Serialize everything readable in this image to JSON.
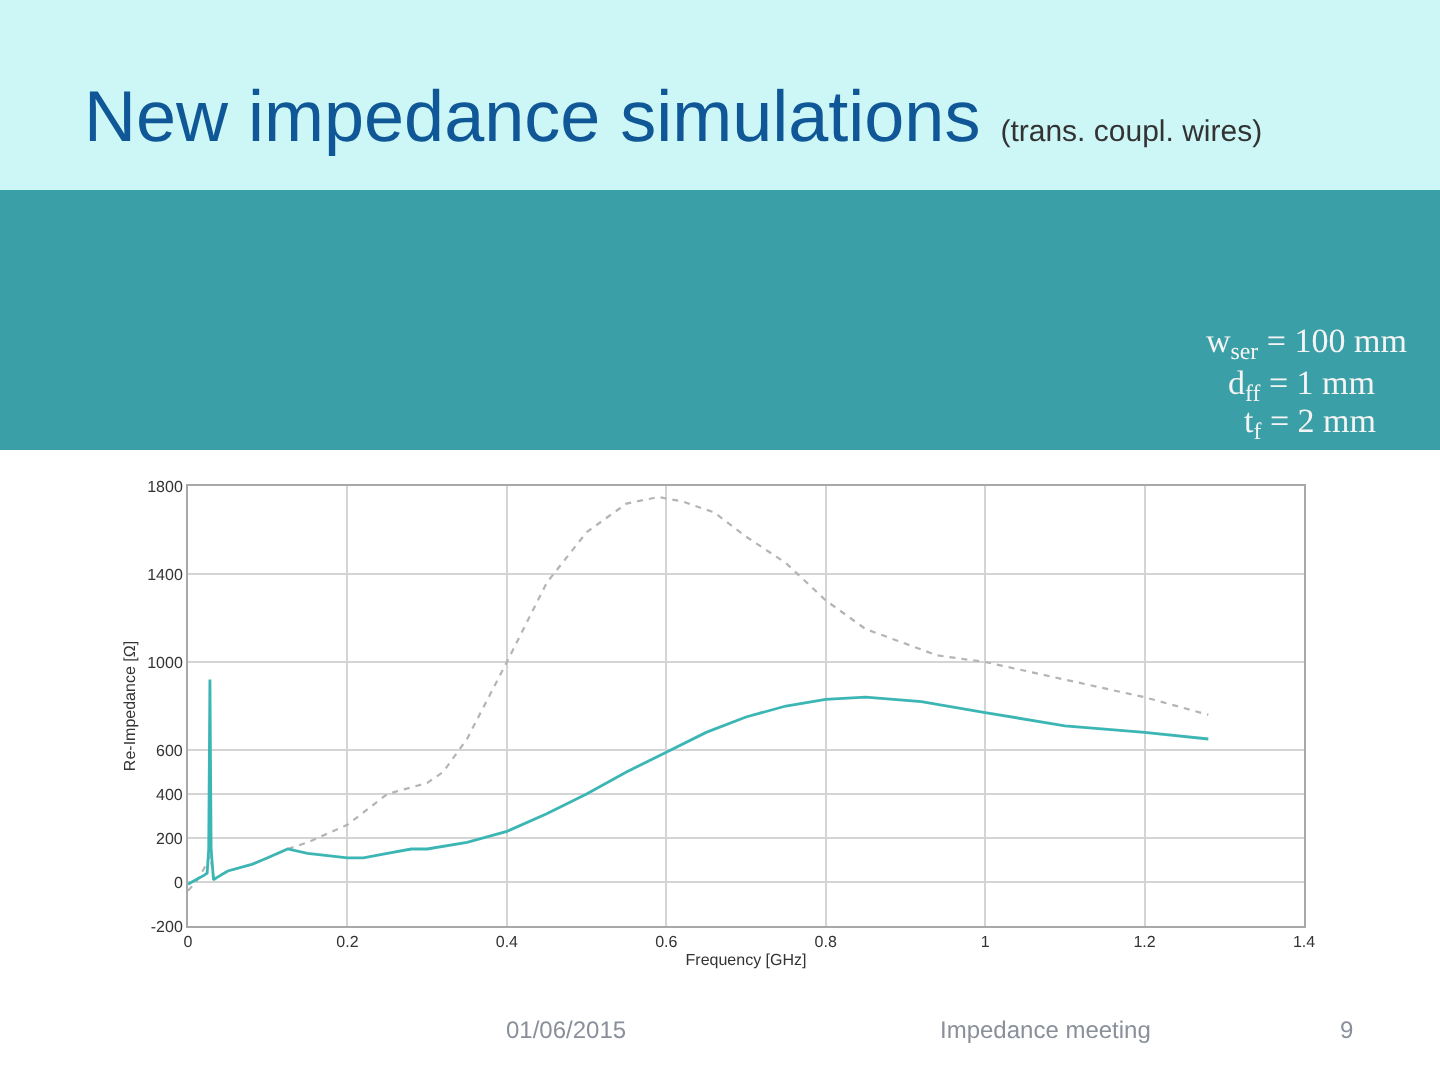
{
  "chart_data": {
    "type": "line",
    "title": "New impedance simulations",
    "subtitle": "(trans. coupl. wires)",
    "xlabel": "Frequency [GHz]",
    "ylabel": "Re-Impedance [Ω]",
    "xlim": [
      0,
      1.4
    ],
    "xticks": [
      0,
      0.2,
      0.4,
      0.6,
      0.8,
      1,
      1.2,
      1.4
    ],
    "ylim": [
      -200,
      1800
    ],
    "yticks": [
      -200,
      0,
      200,
      400,
      600,
      1000,
      1400,
      1800
    ],
    "grid": true,
    "marker": "none",
    "series": [
      {
        "color": "#b4b4b4",
        "line_style": "dotted",
        "x": [
          0,
          0.01,
          0.02,
          0.025,
          0.028,
          0.032,
          0.04,
          0.05,
          0.08,
          0.1,
          0.125,
          0.15,
          0.2,
          0.25,
          0.3,
          0.32,
          0.35,
          0.4,
          0.45,
          0.5,
          0.55,
          0.59,
          0.62,
          0.66,
          0.7,
          0.75,
          0.8,
          0.85,
          0.94,
          1.0,
          1.1,
          1.2,
          1.28
        ],
        "values": [
          -40,
          0,
          60,
          100,
          120,
          20,
          30,
          50,
          80,
          110,
          150,
          180,
          260,
          400,
          450,
          500,
          650,
          1000,
          1360,
          1590,
          1720,
          1750,
          1730,
          1680,
          1570,
          1450,
          1280,
          1150,
          1030,
          1000,
          920,
          840,
          760
        ]
      },
      {
        "color": "#3cb6b4",
        "line_style": "solid",
        "x": [
          0,
          0.01,
          0.02,
          0.024,
          0.026,
          0.0275,
          0.029,
          0.032,
          0.036,
          0.05,
          0.08,
          0.1,
          0.125,
          0.15,
          0.2,
          0.22,
          0.25,
          0.28,
          0.3,
          0.35,
          0.4,
          0.45,
          0.5,
          0.55,
          0.6,
          0.65,
          0.7,
          0.75,
          0.8,
          0.85,
          0.92,
          1.0,
          1.1,
          1.2,
          1.28
        ],
        "values": [
          -10,
          10,
          30,
          40,
          150,
          920,
          150,
          10,
          20,
          50,
          80,
          110,
          150,
          130,
          110,
          110,
          130,
          150,
          150,
          180,
          230,
          310,
          400,
          500,
          590,
          680,
          750,
          800,
          830,
          840,
          820,
          770,
          710,
          680,
          650
        ]
      }
    ],
    "annotations": [
      "w$_{ser}$ = 100 mm",
      "d$_{ff}$ = 1 mm",
      "t$_{f}$ = 2 mm",
      "01/06/2015",
      "Impedance meeting",
      "9"
    ]
  }
}
